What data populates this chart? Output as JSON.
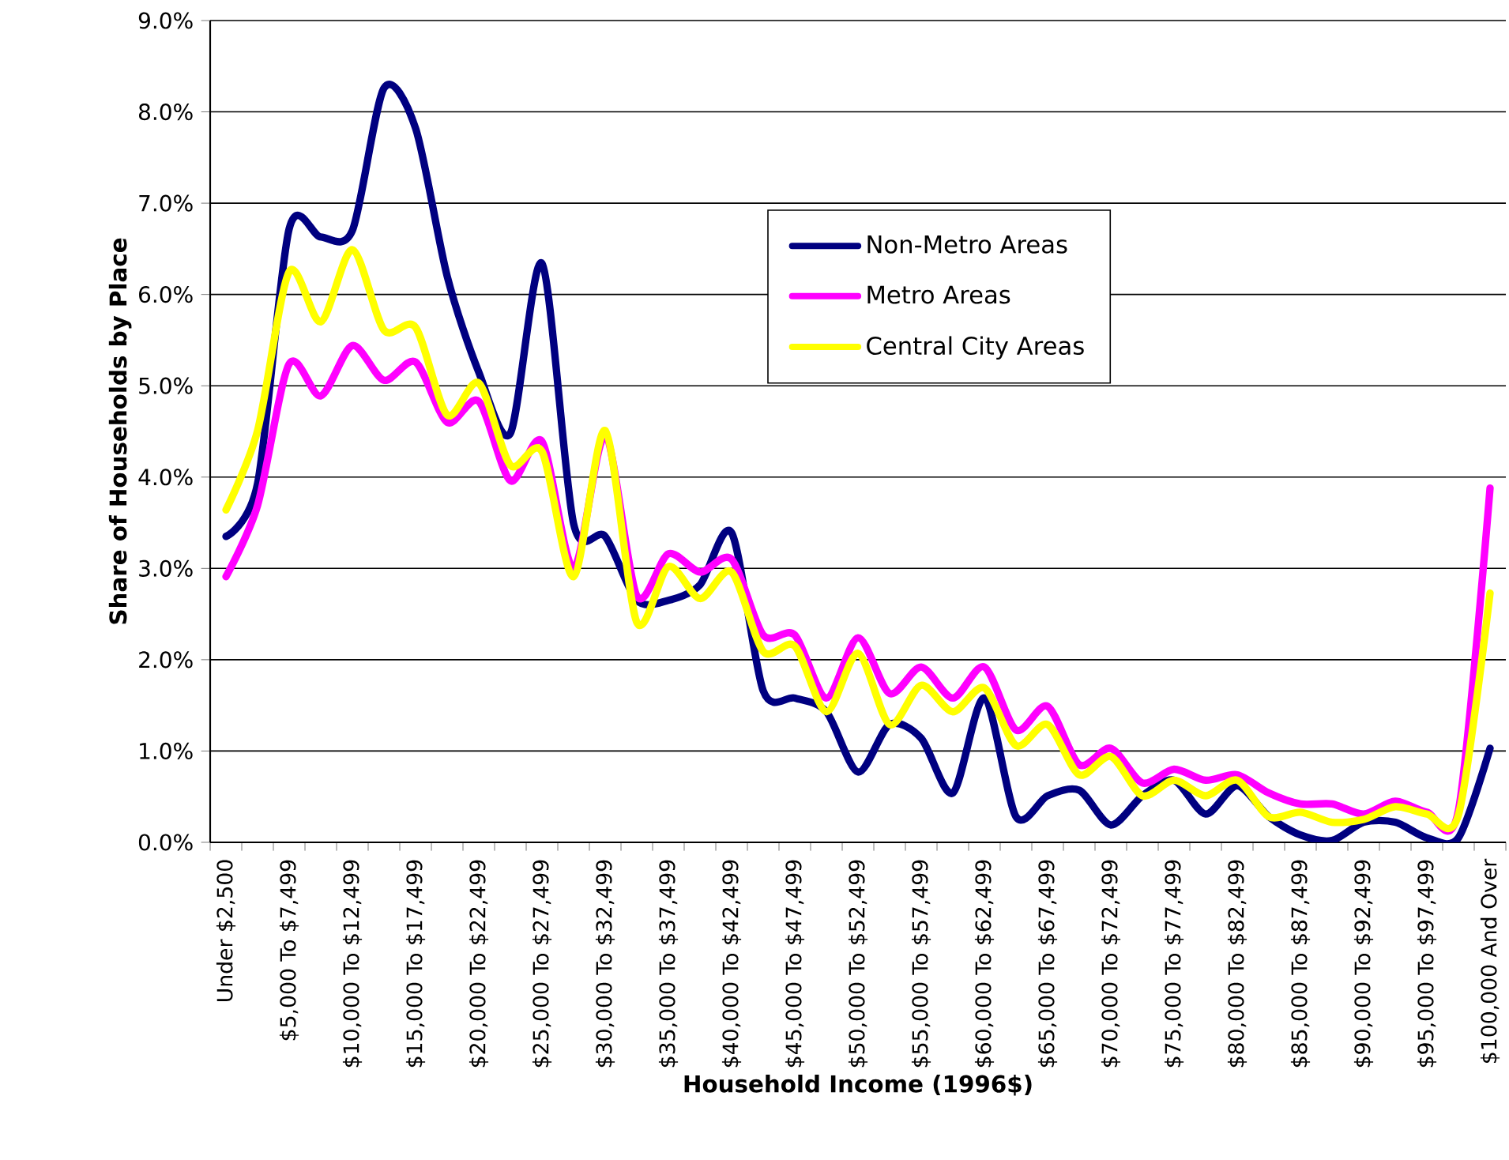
{
  "chart_data": {
    "type": "line",
    "xlabel": "Household Income (1996$)",
    "ylabel": "Share of Households by Place",
    "categories": [
      "Under $2,500",
      null,
      "$5,000 To $7,499",
      null,
      "$10,000 To $12,499",
      null,
      "$15,000 To $17,499",
      null,
      "$20,000 To $22,499",
      null,
      "$25,000 To $27,499",
      null,
      "$30,000 To $32,499",
      null,
      "$35,000 To $37,499",
      null,
      "$40,000 To $42,499",
      null,
      "$45,000 To $47,499",
      null,
      "$50,000 To $52,499",
      null,
      "$55,000 To $57,499",
      null,
      "$60,000 To $62,499",
      null,
      "$65,000 To $67,499",
      null,
      "$70,000 To $72,499",
      null,
      "$75,000 To $77,499",
      null,
      "$80,000 To $82,499",
      null,
      "$85,000 To $87,499",
      null,
      "$90,000 To $92,499",
      null,
      "$95,000 To $97,499",
      null,
      "$100,000 And Over"
    ],
    "series": [
      {
        "name": "Non-Metro Areas",
        "color": "#000080",
        "values": [
          3.35,
          3.93,
          6.72,
          6.63,
          6.7,
          8.26,
          7.82,
          6.2,
          5.15,
          4.48,
          6.34,
          3.49,
          3.35,
          2.65,
          2.65,
          2.82,
          3.39,
          1.66,
          1.58,
          1.43,
          0.77,
          1.29,
          1.14,
          0.54,
          1.58,
          0.28,
          0.51,
          0.57,
          0.19,
          0.51,
          0.68,
          0.31,
          0.62,
          0.28,
          0.08,
          0.02,
          0.22,
          0.22,
          0.05,
          0.05,
          1.03
        ]
      },
      {
        "name": "Metro Areas",
        "color": "#ff00ff",
        "values": [
          2.91,
          3.69,
          5.24,
          4.89,
          5.44,
          5.06,
          5.26,
          4.6,
          4.83,
          3.96,
          4.39,
          3.0,
          4.45,
          2.7,
          3.16,
          2.96,
          3.1,
          2.27,
          2.27,
          1.58,
          2.24,
          1.63,
          1.92,
          1.58,
          1.92,
          1.23,
          1.49,
          0.85,
          1.03,
          0.65,
          0.8,
          0.68,
          0.74,
          0.54,
          0.42,
          0.42,
          0.31,
          0.45,
          0.33,
          0.35,
          3.88
        ]
      },
      {
        "name": "Central City Areas",
        "color": "#ffff00",
        "values": [
          3.64,
          4.51,
          6.25,
          5.7,
          6.49,
          5.61,
          5.64,
          4.68,
          5.03,
          4.13,
          4.28,
          2.91,
          4.51,
          2.41,
          3.02,
          2.67,
          2.96,
          2.09,
          2.15,
          1.43,
          2.07,
          1.29,
          1.72,
          1.43,
          1.69,
          1.06,
          1.29,
          0.74,
          0.94,
          0.51,
          0.68,
          0.51,
          0.68,
          0.28,
          0.33,
          0.22,
          0.25,
          0.39,
          0.31,
          0.3,
          2.73
        ]
      }
    ],
    "ylim": [
      0,
      9
    ],
    "yticks": [
      {
        "value": 0,
        "label": "0.0%"
      },
      {
        "value": 1,
        "label": "1.0%"
      },
      {
        "value": 2,
        "label": "2.0%"
      },
      {
        "value": 3,
        "label": "3.0%"
      },
      {
        "value": 4,
        "label": "4.0%"
      },
      {
        "value": 5,
        "label": "5.0%"
      },
      {
        "value": 6,
        "label": "6.0%"
      },
      {
        "value": 7,
        "label": "7.0%"
      },
      {
        "value": 8,
        "label": "8.0%"
      },
      {
        "value": 9,
        "label": "9.0%"
      }
    ],
    "grid": "y",
    "legend": "top right",
    "marker": "none",
    "line_style": "solid"
  }
}
